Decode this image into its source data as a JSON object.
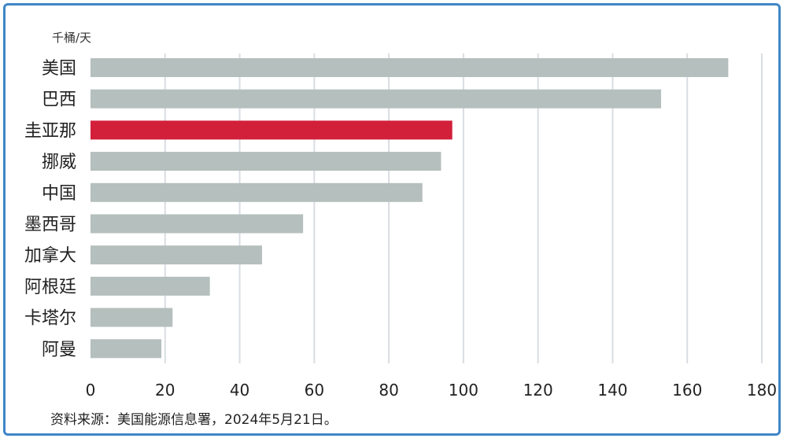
{
  "chart_data": {
    "type": "bar",
    "orientation": "horizontal",
    "unit_label": "千桶/天",
    "categories": [
      "美国",
      "巴西",
      "圭亚那",
      "挪威",
      "中国",
      "墨西哥",
      "加拿大",
      "阿根廷",
      "卡塔尔",
      "阿曼"
    ],
    "values": [
      171,
      153,
      97,
      94,
      89,
      57,
      46,
      32,
      22,
      19
    ],
    "highlight_category": "圭亚那",
    "xlim": [
      0,
      180
    ],
    "xticks": [
      "0",
      "20",
      "40",
      "60",
      "80",
      "100",
      "120",
      "140",
      "160",
      "180"
    ],
    "grid": "vertical",
    "colors": {
      "bar": "#b5bfbd",
      "highlight": "#d21f3a",
      "grid": "#d9dde3",
      "frame": "#3f86c8"
    },
    "source": "资料来源：美国能源信息署，2024年5月21日。"
  }
}
